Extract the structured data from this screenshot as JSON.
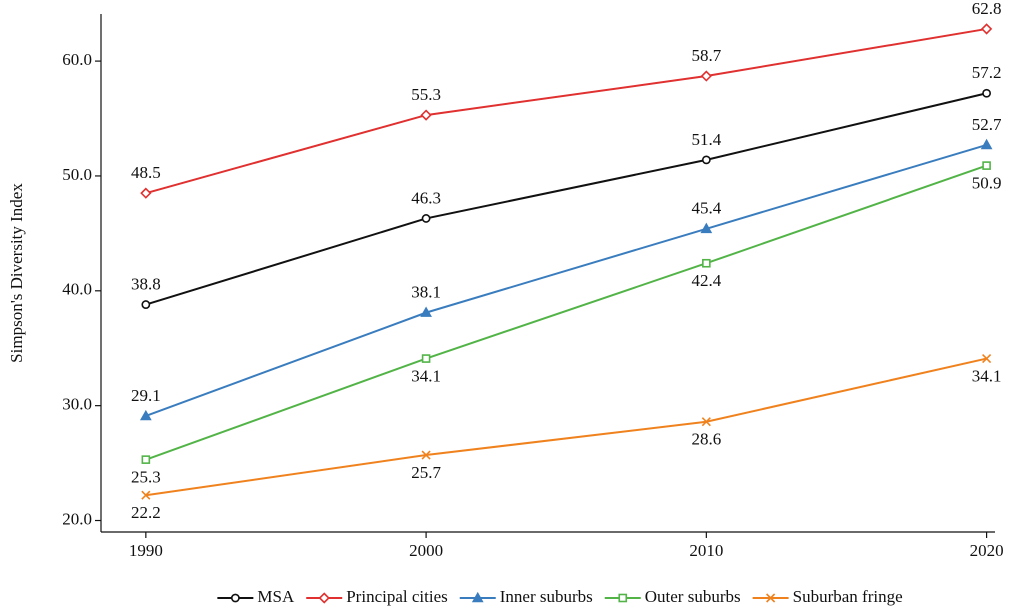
{
  "chart_data": {
    "type": "line",
    "y_label": "Simpson's Diversity Index",
    "x": [
      1990,
      2000,
      2010,
      2020
    ],
    "xlim": [
      1988.4,
      2020.3
    ],
    "xticks": [
      1990,
      2000,
      2010,
      2020
    ],
    "ylim": [
      19.0,
      64.1
    ],
    "yticks": [
      {
        "value": 20,
        "label": "20.0"
      },
      {
        "value": 30,
        "label": "30.0"
      },
      {
        "value": 40,
        "label": "40.0"
      },
      {
        "value": 50,
        "label": "50.0"
      },
      {
        "value": 60,
        "label": "60.0"
      }
    ],
    "grid": false,
    "legend": "bottom",
    "series": [
      {
        "name": "MSA",
        "color": "#111111",
        "marker": "circle",
        "values": [
          38.8,
          46.3,
          51.4,
          57.2
        ]
      },
      {
        "name": "Principal cities",
        "color": "#e0302f",
        "marker": "diamond",
        "values": [
          48.5,
          55.3,
          58.7,
          62.8
        ]
      },
      {
        "name": "Inner suburbs",
        "color": "#3a7dbf",
        "marker": "triangle",
        "values": [
          29.1,
          38.1,
          45.4,
          52.7
        ]
      },
      {
        "name": "Outer suburbs",
        "color": "#52b447",
        "marker": "square",
        "values": [
          25.3,
          34.1,
          42.4,
          50.9
        ]
      },
      {
        "name": "Suburban fringe",
        "color": "#f0821e",
        "marker": "x",
        "values": [
          22.2,
          25.7,
          28.6,
          34.1
        ]
      }
    ]
  }
}
